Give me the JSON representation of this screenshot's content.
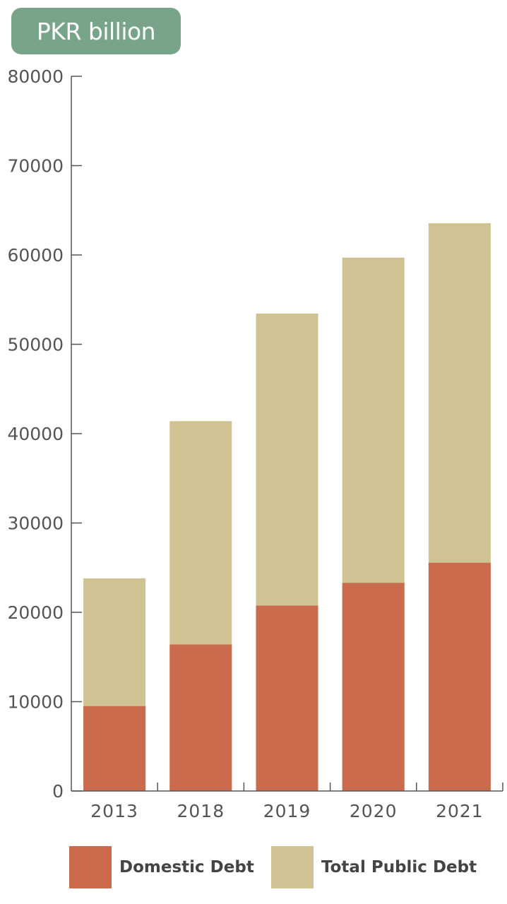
{
  "unit_label": "PKR billion",
  "colors": {
    "badge": "#78a58a",
    "domestic": "#cb6b4d",
    "total": "#cfc393",
    "axis": "#555555"
  },
  "legend": {
    "domestic": "Domestic Debt",
    "total": "Total Public Debt"
  },
  "chart_data": {
    "type": "bar",
    "stacked": false,
    "overlapping": true,
    "categories": [
      "2013",
      "2018",
      "2019",
      "2020",
      "2021"
    ],
    "series": [
      {
        "name": "Total Public Debt",
        "values": [
          23800,
          41400,
          53450,
          59700,
          63550
        ]
      },
      {
        "name": "Domestic Debt",
        "values": [
          9500,
          16400,
          20750,
          23300,
          25550
        ]
      }
    ],
    "ylabel": "PKR billion",
    "ylim": [
      0,
      80000
    ],
    "yticks": [
      0,
      10000,
      20000,
      30000,
      40000,
      50000,
      60000,
      70000,
      80000
    ],
    "grid": false,
    "legend_position": "bottom"
  }
}
